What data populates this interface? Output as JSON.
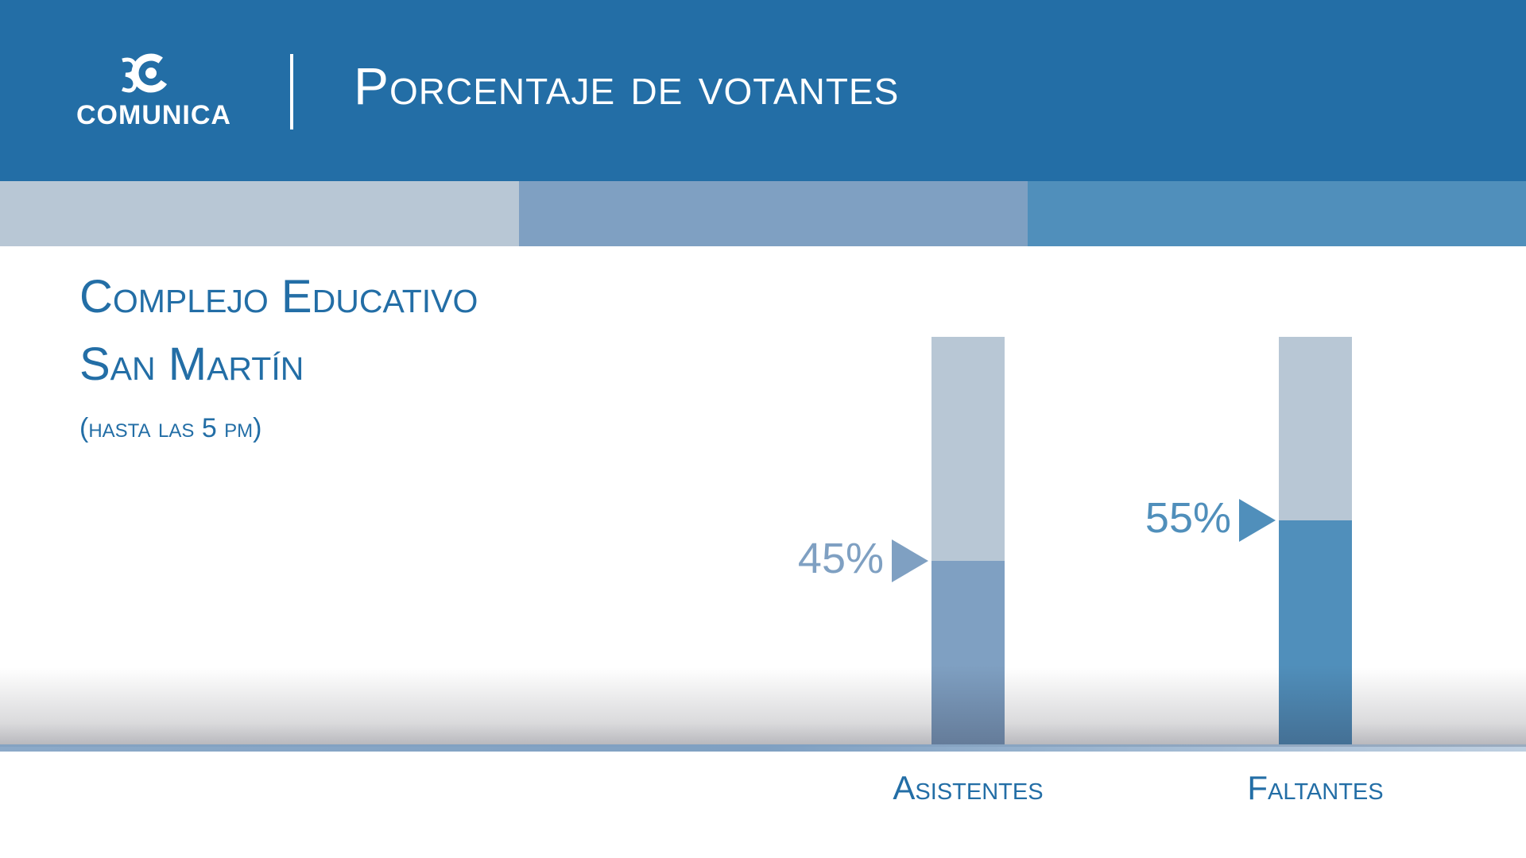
{
  "header": {
    "brand": "COMUNICA",
    "title": "Porcentaje de votantes"
  },
  "subtitle": {
    "line1": "Complejo Educativo",
    "line2": "San Martín",
    "line3": "(hasta las 5 pm)"
  },
  "colors": {
    "header": "#236ea6",
    "stripe_light": "#b8c7d5",
    "stripe_mid": "#7fa0c2",
    "stripe_dark": "#508fbb"
  },
  "icons": {
    "logo": "comunica-logo-icon",
    "marker": "triangle-right-icon"
  },
  "chart_data": {
    "type": "bar",
    "categories": [
      "Asistentes",
      "Faltantes"
    ],
    "values": [
      45,
      55
    ],
    "value_labels": [
      "45%",
      "55%"
    ],
    "colors": [
      "#7fa0c2",
      "#508fbb"
    ],
    "ylim": [
      0,
      100
    ],
    "unit": "%"
  }
}
